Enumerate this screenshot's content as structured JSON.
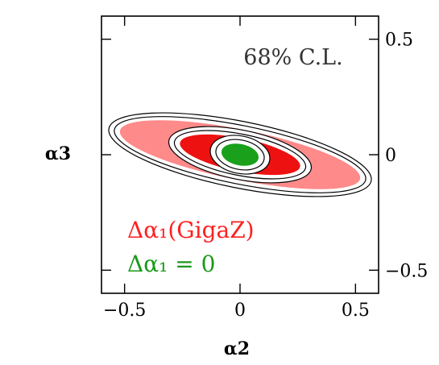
{
  "chart_data": {
    "type": "contour",
    "annotation": "68% C.L.",
    "xlabel": "α2",
    "ylabel": "α3",
    "xlim": [
      -0.6,
      0.6
    ],
    "ylim": [
      -0.6,
      0.6
    ],
    "x_ticks": [
      {
        "value": -0.5,
        "label": "−0.5"
      },
      {
        "value": 0,
        "label": "0"
      },
      {
        "value": 0.5,
        "label": "0.5"
      }
    ],
    "y_ticks": [
      {
        "value": 0.5,
        "label": "0.5"
      },
      {
        "value": 0,
        "label": "0"
      },
      {
        "value": -0.5,
        "label": "−0.5"
      }
    ],
    "legend": [
      {
        "label": "Δα₁(GigaZ)",
        "color": "#ff2020"
      },
      {
        "label": "Δα₁ = 0",
        "color": "#1a9a1a"
      }
    ],
    "regions": [
      {
        "label": "Δα₁(GigaZ)",
        "color": "#ff8a8a",
        "center": [
          0.0,
          0.0
        ],
        "semi_axis": 0.52,
        "orientation_slope": -0.2
      },
      {
        "label": "Δα₁(GigaZ)",
        "color": "#ee1111",
        "center": [
          0.0,
          0.0
        ],
        "semi_axis": 0.26,
        "orientation_slope": -0.2
      },
      {
        "label": "Δα₁ = 0",
        "color": "#1aa01a",
        "center": [
          0.0,
          0.0
        ],
        "semi_axis": 0.08,
        "orientation_slope": -0.2
      }
    ]
  }
}
